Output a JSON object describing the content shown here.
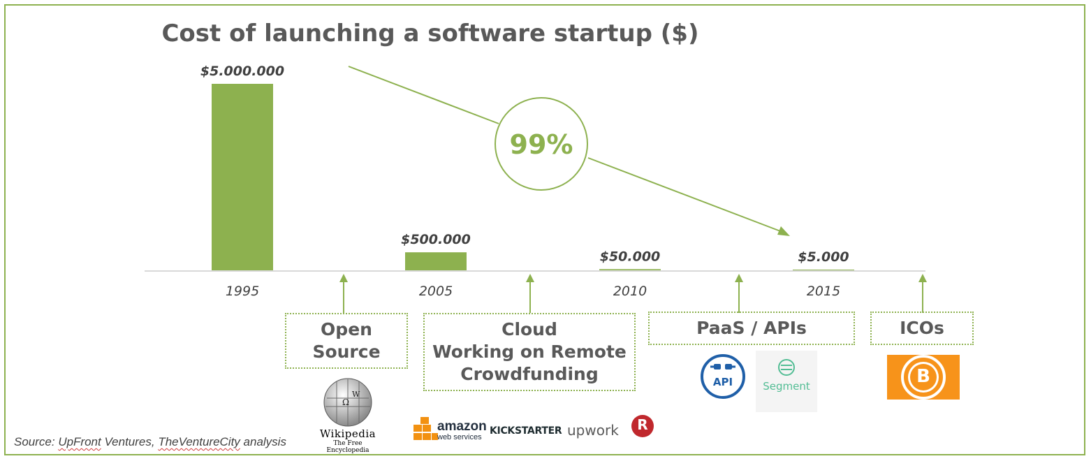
{
  "chart_data": {
    "type": "bar",
    "title": "Cost of launching a software startup ($)",
    "categories": [
      "1995",
      "2005",
      "2010",
      "2015"
    ],
    "values": [
      5000000,
      500000,
      50000,
      5000
    ],
    "data_labels": [
      "$5.000.000",
      "$500.000",
      "$50.000",
      "$5.000"
    ],
    "color": "#8db14f",
    "annotation": "99%",
    "xlabel": "",
    "ylabel": ""
  },
  "drivers": [
    {
      "label": "Open\nSource"
    },
    {
      "label": "Cloud\nWorking on Remote\nCrowdfunding"
    },
    {
      "label": "PaaS / APIs"
    },
    {
      "label": "ICOs"
    }
  ],
  "logos": {
    "wikipedia": {
      "name": "Wikipedia",
      "tagline": "The Free Encyclopedia"
    },
    "aws": {
      "line1": "amazon",
      "line2": "web services"
    },
    "kickstarter": "KICKSTARTER",
    "upwork": "upwork",
    "api": "API",
    "segment": "Segment",
    "bitcoin": "B",
    "rocket_r": "R"
  },
  "source": {
    "prefix": "Source: ",
    "part1": "UpFront",
    "part2": " Ventures, ",
    "part3": "TheVentureCity",
    "part4": " analysis"
  },
  "colors": {
    "accent": "#8db14f",
    "text": "#595959",
    "axis": "#d9d9d9",
    "aws_orange": "#f29111",
    "api_blue": "#1f5fa8",
    "segment_green": "#52bd94",
    "bitcoin_orange": "#f7931a",
    "rocket_red": "#c0282d"
  }
}
